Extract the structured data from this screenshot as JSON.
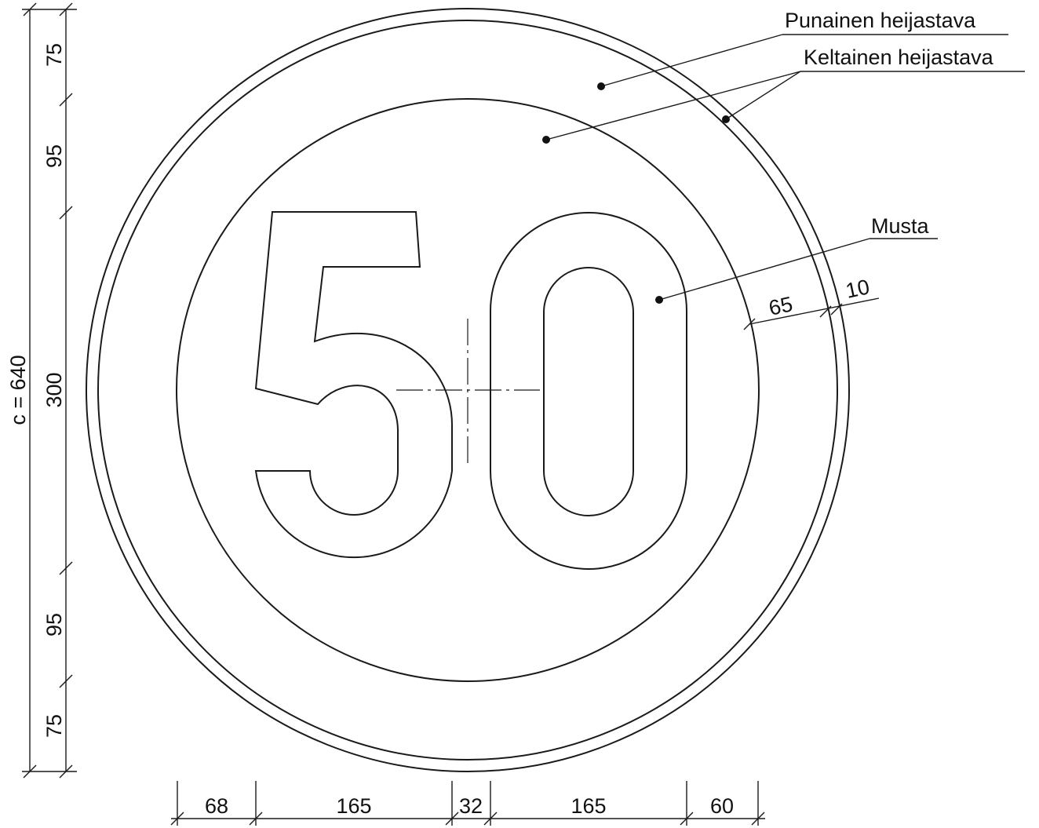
{
  "callouts": {
    "red_reflective": "Punainen heijastava",
    "yellow_reflective": "Keltainen heijastava",
    "black": "Musta"
  },
  "vertical_dimensions": {
    "total": "c = 640",
    "seg1": "75",
    "seg2": "95",
    "seg3": "300",
    "seg4": "95",
    "seg5": "75"
  },
  "horizontal_dimensions": {
    "seg1": "68",
    "seg2": "165",
    "seg3": "32",
    "seg4": "165",
    "seg5": "60"
  },
  "ring_dimensions": {
    "red_band": "65",
    "outer_band": "10"
  },
  "sign_digits": "50"
}
